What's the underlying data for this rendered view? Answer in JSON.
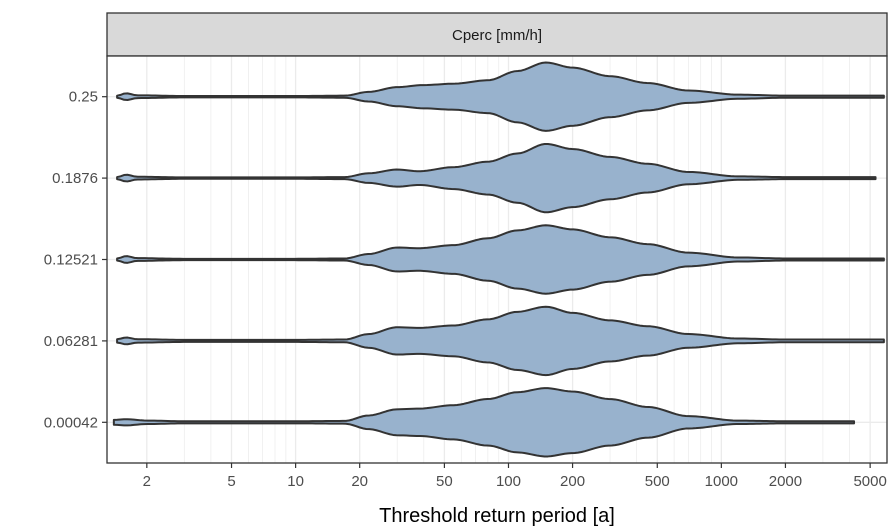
{
  "chart_data": {
    "type": "violin",
    "orientation": "horizontal",
    "facet_label": "Cperc [mm/h]",
    "xlabel": "Threshold return period [a]",
    "ylabel": "",
    "x_scale": "log10",
    "xlim": [
      1.3,
      6000
    ],
    "x_ticks": [
      2,
      5,
      10,
      20,
      50,
      100,
      200,
      500,
      1000,
      2000,
      5000
    ],
    "x_tick_labels": [
      "2",
      "5",
      "10",
      "20",
      "50",
      "100",
      "200",
      "500",
      "1000",
      "2000",
      "5000"
    ],
    "categories": [
      "0.25",
      "0.1876",
      "0.12521",
      "0.06281",
      "0.00042"
    ],
    "grid": true,
    "colors": {
      "fill": "#98b2cd",
      "outline": "#333333",
      "strip_bg": "#d9d9d9",
      "grid": "#ebebeb"
    },
    "series": [
      {
        "category": "0.25",
        "x_range": [
          1.45,
          5800
        ],
        "density": [
          [
            1.45,
            0.03
          ],
          [
            1.6,
            0.1
          ],
          [
            1.8,
            0.04
          ],
          [
            3,
            0.02
          ],
          [
            10,
            0.02
          ],
          [
            17,
            0.03
          ],
          [
            22,
            0.14
          ],
          [
            30,
            0.28
          ],
          [
            40,
            0.34
          ],
          [
            55,
            0.38
          ],
          [
            80,
            0.48
          ],
          [
            110,
            0.75
          ],
          [
            150,
            1.0
          ],
          [
            200,
            0.85
          ],
          [
            300,
            0.6
          ],
          [
            450,
            0.4
          ],
          [
            700,
            0.18
          ],
          [
            1200,
            0.06
          ],
          [
            2000,
            0.03
          ],
          [
            5800,
            0.03
          ]
        ]
      },
      {
        "category": "0.1876",
        "x_range": [
          1.45,
          5300
        ],
        "density": [
          [
            1.45,
            0.03
          ],
          [
            1.6,
            0.1
          ],
          [
            1.8,
            0.04
          ],
          [
            3,
            0.02
          ],
          [
            10,
            0.02
          ],
          [
            17,
            0.03
          ],
          [
            22,
            0.14
          ],
          [
            30,
            0.25
          ],
          [
            38,
            0.2
          ],
          [
            55,
            0.32
          ],
          [
            80,
            0.48
          ],
          [
            110,
            0.72
          ],
          [
            150,
            1.0
          ],
          [
            200,
            0.85
          ],
          [
            300,
            0.62
          ],
          [
            450,
            0.42
          ],
          [
            700,
            0.18
          ],
          [
            1200,
            0.05
          ],
          [
            2000,
            0.03
          ],
          [
            5300,
            0.03
          ]
        ]
      },
      {
        "category": "0.12521",
        "x_range": [
          1.45,
          5800
        ],
        "density": [
          [
            1.45,
            0.03
          ],
          [
            1.6,
            0.1
          ],
          [
            1.8,
            0.04
          ],
          [
            3,
            0.02
          ],
          [
            10,
            0.02
          ],
          [
            17,
            0.03
          ],
          [
            22,
            0.16
          ],
          [
            30,
            0.35
          ],
          [
            38,
            0.33
          ],
          [
            55,
            0.42
          ],
          [
            80,
            0.62
          ],
          [
            110,
            0.85
          ],
          [
            150,
            1.0
          ],
          [
            200,
            0.88
          ],
          [
            300,
            0.65
          ],
          [
            450,
            0.45
          ],
          [
            700,
            0.2
          ],
          [
            1200,
            0.06
          ],
          [
            2000,
            0.03
          ],
          [
            5800,
            0.03
          ]
        ]
      },
      {
        "category": "0.06281",
        "x_range": [
          1.45,
          5800
        ],
        "density": [
          [
            1.45,
            0.05
          ],
          [
            1.6,
            0.1
          ],
          [
            1.8,
            0.05
          ],
          [
            3,
            0.03
          ],
          [
            10,
            0.03
          ],
          [
            17,
            0.04
          ],
          [
            22,
            0.2
          ],
          [
            30,
            0.4
          ],
          [
            38,
            0.38
          ],
          [
            55,
            0.45
          ],
          [
            80,
            0.63
          ],
          [
            110,
            0.85
          ],
          [
            150,
            1.0
          ],
          [
            200,
            0.82
          ],
          [
            300,
            0.6
          ],
          [
            450,
            0.43
          ],
          [
            700,
            0.2
          ],
          [
            1200,
            0.07
          ],
          [
            2000,
            0.04
          ],
          [
            5800,
            0.04
          ]
        ]
      },
      {
        "category": "0.00042",
        "x_range": [
          1.4,
          4200
        ],
        "density": [
          [
            1.4,
            0.07
          ],
          [
            1.6,
            0.09
          ],
          [
            2,
            0.05
          ],
          [
            3,
            0.03
          ],
          [
            10,
            0.03
          ],
          [
            17,
            0.04
          ],
          [
            22,
            0.2
          ],
          [
            30,
            0.38
          ],
          [
            38,
            0.4
          ],
          [
            55,
            0.5
          ],
          [
            80,
            0.68
          ],
          [
            110,
            0.88
          ],
          [
            150,
            1.0
          ],
          [
            200,
            0.9
          ],
          [
            300,
            0.68
          ],
          [
            450,
            0.45
          ],
          [
            700,
            0.18
          ],
          [
            1200,
            0.05
          ],
          [
            2000,
            0.03
          ],
          [
            4200,
            0.03
          ]
        ]
      }
    ]
  }
}
